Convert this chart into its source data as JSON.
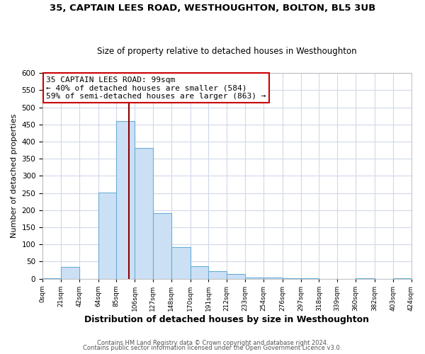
{
  "title1": "35, CAPTAIN LEES ROAD, WESTHOUGHTON, BOLTON, BL5 3UB",
  "title2": "Size of property relative to detached houses in Westhoughton",
  "xlabel": "Distribution of detached houses by size in Westhoughton",
  "ylabel": "Number of detached properties",
  "bin_edges": [
    0,
    21,
    42,
    64,
    85,
    106,
    127,
    148,
    170,
    191,
    212,
    233,
    254,
    276,
    297,
    318,
    339,
    360,
    382,
    403,
    424
  ],
  "bin_counts": [
    2,
    35,
    0,
    252,
    460,
    381,
    192,
    93,
    36,
    21,
    13,
    3,
    4,
    2,
    1,
    0,
    0,
    1,
    0,
    1
  ],
  "bar_color": "#cce0f5",
  "bar_edge_color": "#6aaed6",
  "property_size": 99,
  "vline_color": "#8b0000",
  "annotation_title": "35 CAPTAIN LEES ROAD: 99sqm",
  "annotation_line1": "← 40% of detached houses are smaller (584)",
  "annotation_line2": "59% of semi-detached houses are larger (863) →",
  "annotation_box_color": "#ffffff",
  "annotation_box_edge_color": "#cc0000",
  "ylim": [
    0,
    600
  ],
  "yticks": [
    0,
    50,
    100,
    150,
    200,
    250,
    300,
    350,
    400,
    450,
    500,
    550,
    600
  ],
  "tick_labels": [
    "0sqm",
    "21sqm",
    "42sqm",
    "64sqm",
    "85sqm",
    "106sqm",
    "127sqm",
    "148sqm",
    "170sqm",
    "191sqm",
    "212sqm",
    "233sqm",
    "254sqm",
    "276sqm",
    "297sqm",
    "318sqm",
    "339sqm",
    "360sqm",
    "382sqm",
    "403sqm",
    "424sqm"
  ],
  "footer1": "Contains HM Land Registry data © Crown copyright and database right 2024.",
  "footer2": "Contains public sector information licensed under the Open Government Licence v3.0.",
  "bg_color": "#ffffff",
  "plot_bg_color": "#ffffff",
  "grid_color": "#d0d8e8"
}
